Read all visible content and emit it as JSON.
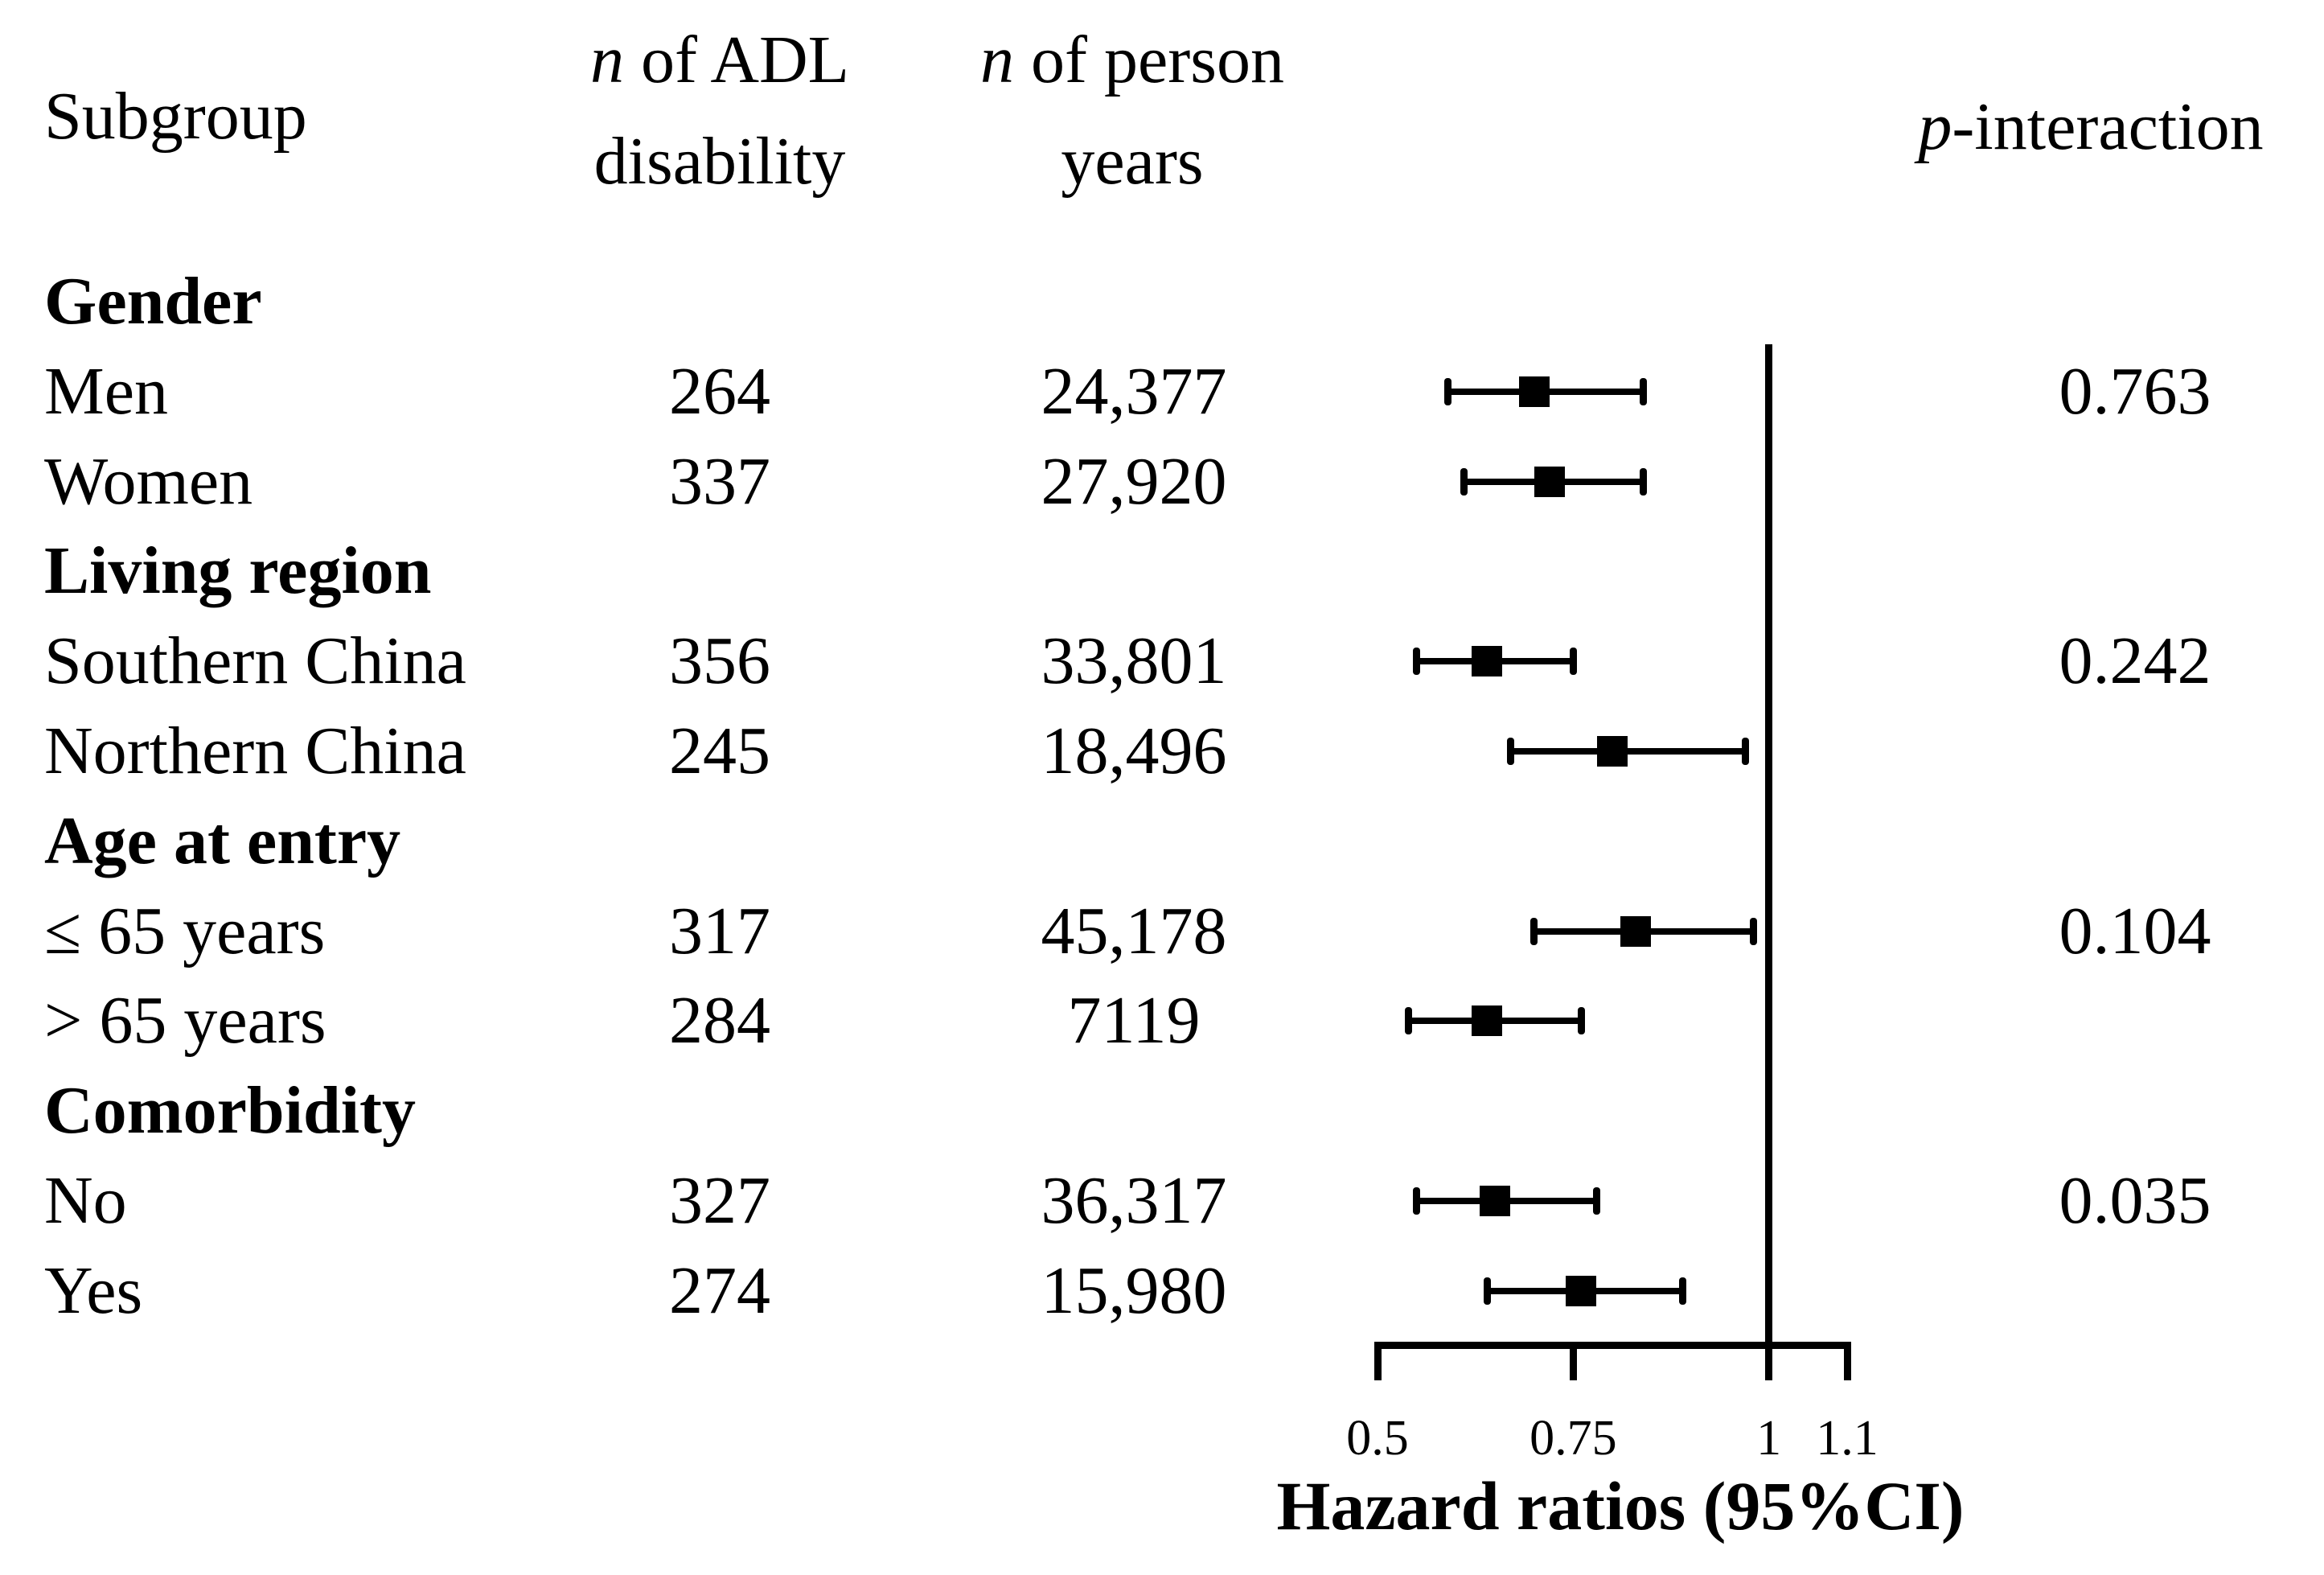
{
  "figure": {
    "background": "#ffffff",
    "text_color": "#000000"
  },
  "headers": {
    "subgroup": "Subgroup",
    "n_adl": {
      "italic": "n",
      "rest": " of ADL",
      "line2": "disability"
    },
    "n_person_years": {
      "italic": "n",
      "rest": " of person",
      "line2": "years"
    },
    "p_interaction": {
      "italic": "p",
      "rest": "-interaction"
    }
  },
  "rows": [
    {
      "type": "section",
      "label": "Gender"
    },
    {
      "type": "item",
      "label": "Men",
      "n_adl": "264",
      "n_py": "24,377",
      "p": "0.763",
      "hr": 0.7,
      "lo": 0.59,
      "hi": 0.84
    },
    {
      "type": "item",
      "label": "Women",
      "n_adl": "337",
      "n_py": "27,920",
      "hr": 0.72,
      "lo": 0.61,
      "hi": 0.84
    },
    {
      "type": "section",
      "label": "Living region"
    },
    {
      "type": "item",
      "label": "Southern China",
      "n_adl": "356",
      "n_py": "33,801",
      "p": "0.242",
      "hr": 0.64,
      "lo": 0.55,
      "hi": 0.75
    },
    {
      "type": "item",
      "label": "Northern China",
      "n_adl": "245",
      "n_py": "18,496",
      "hr": 0.8,
      "lo": 0.67,
      "hi": 0.97
    },
    {
      "type": "section",
      "label": "Age at entry"
    },
    {
      "type": "item",
      "label": "≤ 65 years",
      "n_adl": "317",
      "n_py": "45,178",
      "p": "0.104",
      "hr": 0.83,
      "lo": 0.7,
      "hi": 0.98
    },
    {
      "type": "item",
      "label": "> 65 years",
      "n_adl": "284",
      "n_py": "7119",
      "hr": 0.64,
      "lo": 0.54,
      "hi": 0.76
    },
    {
      "type": "section",
      "label": "Comorbidity"
    },
    {
      "type": "item",
      "label": "No",
      "n_adl": "327",
      "n_py": "36,317",
      "p": "0.035",
      "hr": 0.65,
      "lo": 0.55,
      "hi": 0.78
    },
    {
      "type": "item",
      "label": "Yes",
      "n_adl": "274",
      "n_py": "15,980",
      "hr": 0.76,
      "lo": 0.64,
      "hi": 0.89
    }
  ],
  "axis": {
    "title": "Hazard ratios (95%CI)",
    "tick_labels": [
      "0.5",
      "0.75",
      "1",
      "1.1"
    ],
    "tick_values": [
      0.5,
      0.75,
      1,
      1.1
    ],
    "min": 0.5,
    "max": 1.1,
    "reference_value": 1
  },
  "chart_data": {
    "type": "scatter",
    "variant": "forest-plot",
    "title": "Hazard ratios (95%CI)",
    "xlabel": "Hazard ratios (95%CI)",
    "xlim": [
      0.5,
      1.1
    ],
    "x_ticks": [
      0.5,
      0.75,
      1,
      1.1
    ],
    "reference_line_x": 1,
    "grid": false,
    "legend": false,
    "series": [
      {
        "group": "Gender",
        "name": "Men",
        "hr": 0.7,
        "ci_low": 0.59,
        "ci_high": 0.84,
        "n_adl": 264,
        "n_person_years": 24377,
        "p_interaction": 0.763
      },
      {
        "group": "Gender",
        "name": "Women",
        "hr": 0.72,
        "ci_low": 0.61,
        "ci_high": 0.84,
        "n_adl": 337,
        "n_person_years": 27920
      },
      {
        "group": "Living region",
        "name": "Southern China",
        "hr": 0.64,
        "ci_low": 0.55,
        "ci_high": 0.75,
        "n_adl": 356,
        "n_person_years": 33801,
        "p_interaction": 0.242
      },
      {
        "group": "Living region",
        "name": "Northern China",
        "hr": 0.8,
        "ci_low": 0.67,
        "ci_high": 0.97,
        "n_adl": 245,
        "n_person_years": 18496
      },
      {
        "group": "Age at entry",
        "name": "≤ 65 years",
        "hr": 0.83,
        "ci_low": 0.7,
        "ci_high": 0.98,
        "n_adl": 317,
        "n_person_years": 45178,
        "p_interaction": 0.104
      },
      {
        "group": "Age at entry",
        "name": "> 65 years",
        "hr": 0.64,
        "ci_low": 0.54,
        "ci_high": 0.76,
        "n_adl": 284,
        "n_person_years": 7119
      },
      {
        "group": "Comorbidity",
        "name": "No",
        "hr": 0.65,
        "ci_low": 0.55,
        "ci_high": 0.78,
        "n_adl": 327,
        "n_person_years": 36317,
        "p_interaction": 0.035
      },
      {
        "group": "Comorbidity",
        "name": "Yes",
        "hr": 0.76,
        "ci_low": 0.64,
        "ci_high": 0.89,
        "n_adl": 274,
        "n_person_years": 15980
      }
    ]
  }
}
